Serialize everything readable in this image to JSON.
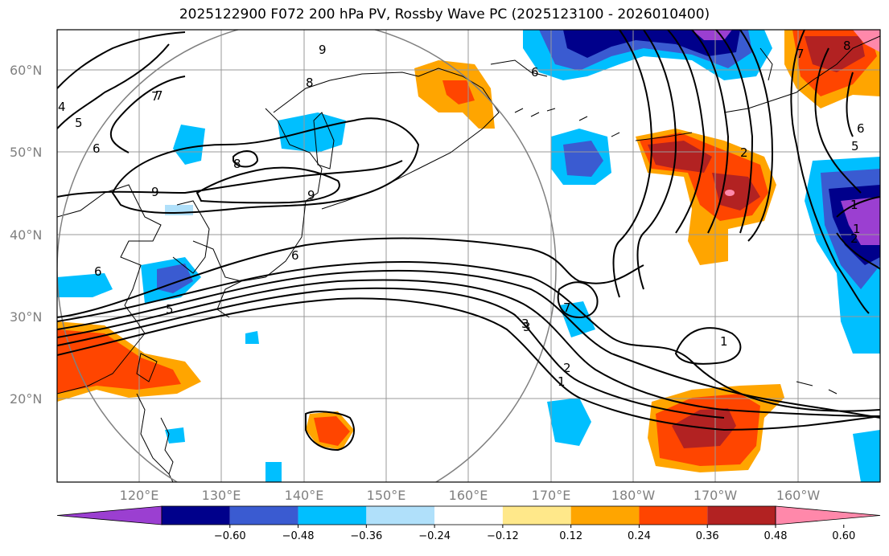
{
  "title": "2025122900 F072 200 hPa PV, Rossby Wave PC (2025123100 - 2026010400)",
  "map": {
    "lat_labels": [
      "60°N",
      "50°N",
      "40°N",
      "30°N",
      "20°N"
    ],
    "lon_labels": [
      "120°E",
      "130°E",
      "140°E",
      "150°E",
      "160°E",
      "170°E",
      "180°W",
      "170°W",
      "160°W"
    ],
    "contour_labels": [
      "9",
      "8",
      "7",
      "6",
      "5",
      "4",
      "3",
      "2",
      "1",
      "9",
      "8",
      "9",
      "6",
      "6",
      "5",
      "7",
      "6",
      "7",
      "2",
      "8",
      "7",
      "6",
      "5",
      "2",
      "1",
      "3",
      "1",
      "1"
    ]
  },
  "colorbar": {
    "ticks": [
      "−0.60",
      "−0.48",
      "−0.36",
      "−0.24",
      "−0.12",
      "0.12",
      "0.24",
      "0.36",
      "0.48",
      "0.60"
    ],
    "colors": [
      "#9b3fd1",
      "#00008b",
      "#3a5bd1",
      "#00bfff",
      "#b0e0fa",
      "#ffffff",
      "#ffe88a",
      "#ffa500",
      "#ff4500",
      "#b22222",
      "#ff88aa"
    ]
  }
}
